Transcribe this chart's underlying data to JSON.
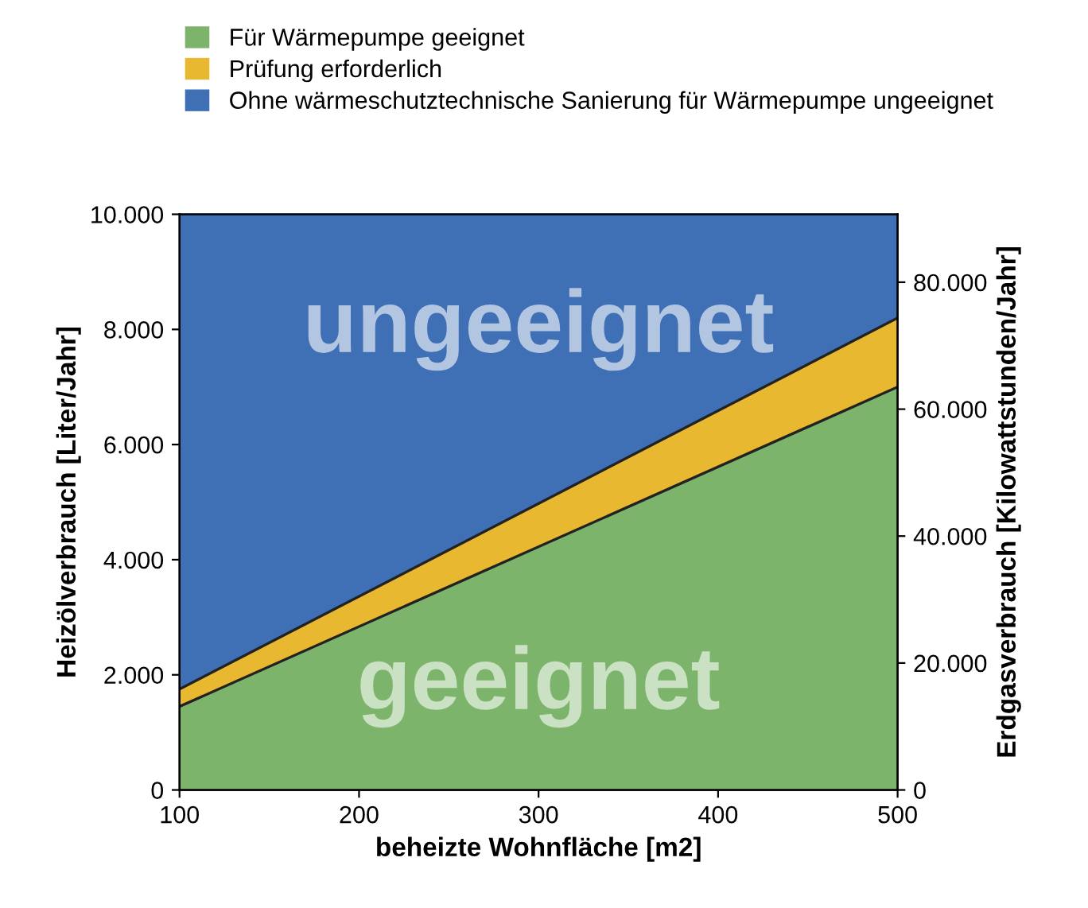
{
  "chart_data": {
    "type": "area",
    "stacked": true,
    "x": [
      100,
      500
    ],
    "series": [
      {
        "name": "Für Wärmepumpe geeignet",
        "color": "#7db46c",
        "values": [
          1450,
          7000
        ]
      },
      {
        "name": "Prüfung erforderlich",
        "color": "#e8b830",
        "values": [
          300,
          1200
        ]
      },
      {
        "name": "Ohne wärmeschutztechnische Sanierung für Wärmepumpe ungeeignet",
        "color": "#3f6fb5",
        "values": [
          8250,
          1800
        ]
      }
    ],
    "xlabel": "beheizte Wohnfläche [m2]",
    "ylabel": "Heizölverbrauch [Liter/Jahr]",
    "y2label": "Erdgasverbrauch [Kilowattstunden/Jahr]",
    "xlim": [
      100,
      500
    ],
    "xticks": [
      100,
      200,
      300,
      400,
      500
    ],
    "ylim": [
      0,
      10000
    ],
    "yticks": [
      0,
      {
        "value": 2000,
        "label": "2.000"
      },
      {
        "value": 4000,
        "label": "4.000"
      },
      {
        "value": 6000,
        "label": "6.000"
      },
      {
        "value": 8000,
        "label": "8.000"
      },
      {
        "value": 10000,
        "label": "10.000"
      }
    ],
    "y2lim": [
      0,
      90700
    ],
    "y2ticks": [
      0,
      {
        "value": 20000,
        "label": "20.000"
      },
      {
        "value": 40000,
        "label": "40.000"
      },
      {
        "value": 60000,
        "label": "60.000"
      },
      {
        "value": 80000,
        "label": "80.000"
      }
    ],
    "annotations": [
      "ungeeignet",
      "geeignet"
    ],
    "legend": "top",
    "grid": false
  }
}
